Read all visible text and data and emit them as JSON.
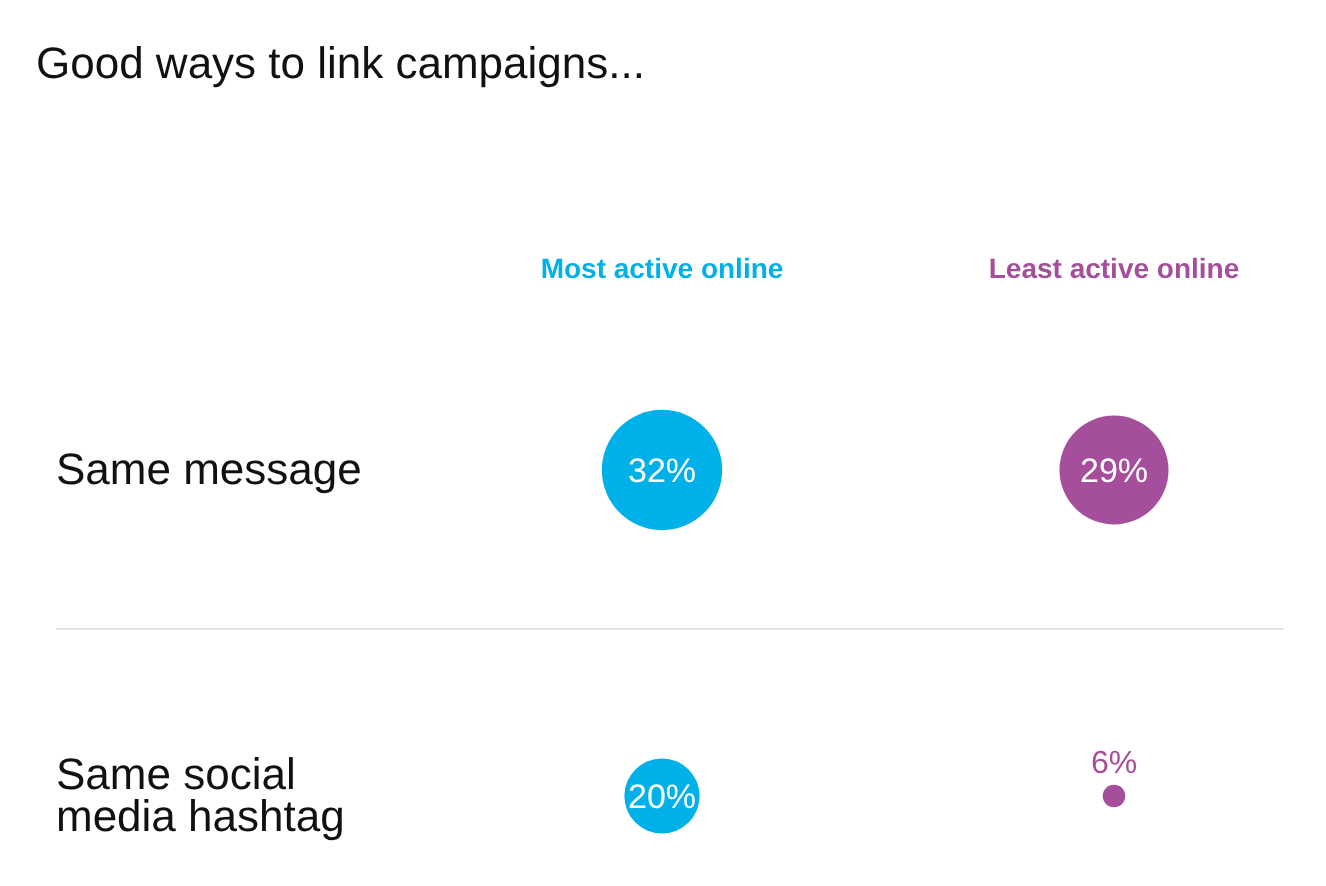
{
  "chart_data": {
    "type": "other",
    "title": "Good ways to link campaigns...",
    "categories": [
      "Same message",
      "Same social media hashtag"
    ],
    "series": [
      {
        "name": "Most active online",
        "color": "#00b1e9",
        "values": [
          32,
          20
        ],
        "value_labels": [
          "32%",
          "20%"
        ]
      },
      {
        "name": "Least active online",
        "color": "#a54e9b",
        "values": [
          29,
          6
        ],
        "value_labels": [
          "29%",
          "6%"
        ]
      }
    ]
  }
}
